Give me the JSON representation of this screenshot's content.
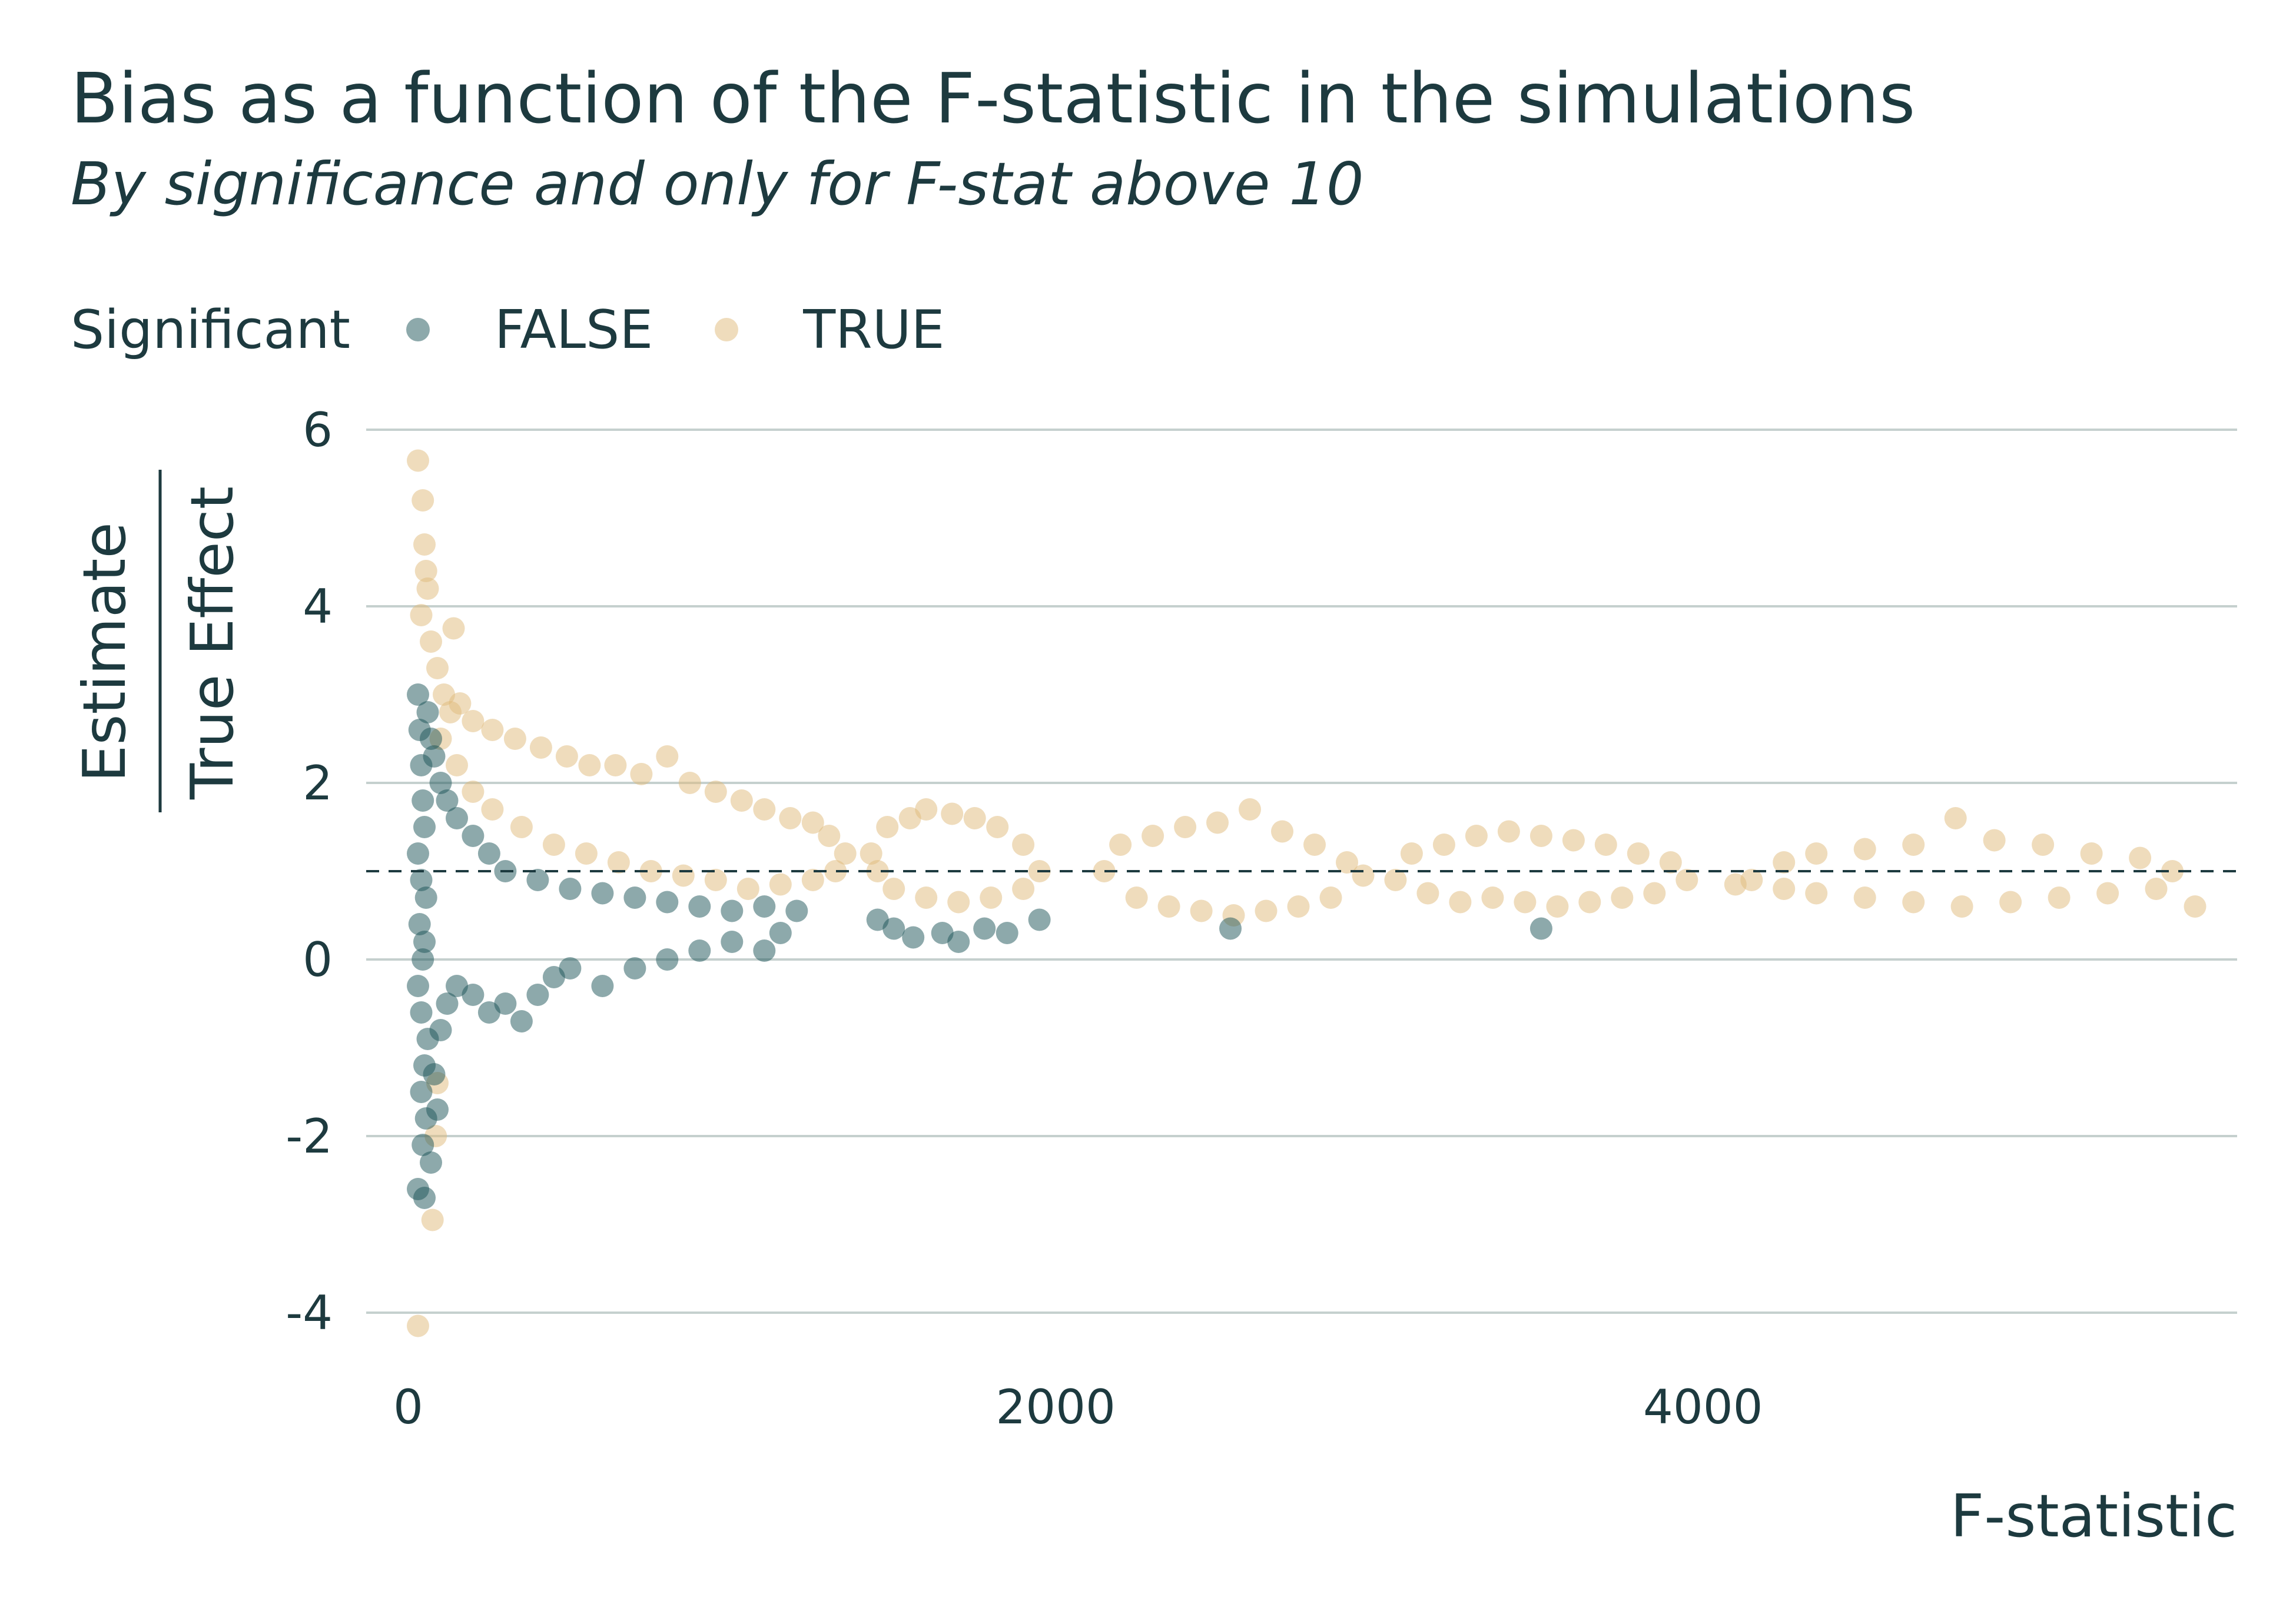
{
  "title": "Bias as a function of the F-statistic in the simulations",
  "subtitle": "By significance and only for F-stat above 10",
  "legend": {
    "title": "Significant",
    "items": [
      {
        "label": "FALSE",
        "color": "#1b5457"
      },
      {
        "label": "TRUE",
        "color": "#dfb97a"
      }
    ]
  },
  "axes": {
    "x_title": "F-statistic",
    "y_title_numerator": "Estimate",
    "y_title_denominator": "True Effect"
  },
  "chart_data": {
    "type": "scatter",
    "title": "Bias as a function of the F-statistic in the simulations",
    "subtitle": "By significance and only for F-stat above 10",
    "xlabel": "F-statistic",
    "ylabel": "Estimate / True Effect",
    "xlim": [
      -130,
      5650
    ],
    "ylim": [
      -4.7,
      6.3
    ],
    "x_ticks": [
      0,
      2000,
      4000
    ],
    "y_ticks": [
      -4,
      -2,
      0,
      2,
      4,
      6
    ],
    "x_tick_labels": [
      "0",
      "2000",
      "4000"
    ],
    "y_tick_labels": [
      "-4",
      "-2",
      "0",
      "2",
      "4",
      "6"
    ],
    "reference_line": {
      "y": 1,
      "style": "dashed"
    },
    "grid": "horizontal major only",
    "legend_position": "top-left",
    "series": [
      {
        "name": "FALSE",
        "color": "#1b5457",
        "description": "Non-significant estimates; dense funnel near F close to 0 spanning roughly -2.7 to 3, narrowing with larger F; a few points up to F about 1950",
        "points": [
          [
            30,
            3.0
          ],
          [
            35,
            2.6
          ],
          [
            40,
            2.2
          ],
          [
            45,
            1.8
          ],
          [
            50,
            1.5
          ],
          [
            30,
            1.2
          ],
          [
            40,
            0.9
          ],
          [
            55,
            0.7
          ],
          [
            35,
            0.4
          ],
          [
            50,
            0.2
          ],
          [
            45,
            0.0
          ],
          [
            30,
            -0.3
          ],
          [
            40,
            -0.6
          ],
          [
            60,
            -0.9
          ],
          [
            50,
            -1.2
          ],
          [
            40,
            -1.5
          ],
          [
            55,
            -1.8
          ],
          [
            45,
            -2.1
          ],
          [
            30,
            -2.6
          ],
          [
            50,
            -2.7
          ],
          [
            70,
            -2.3
          ],
          [
            90,
            -1.7
          ],
          [
            80,
            -1.3
          ],
          [
            100,
            -0.8
          ],
          [
            120,
            -0.5
          ],
          [
            150,
            -0.3
          ],
          [
            200,
            -0.4
          ],
          [
            250,
            -0.6
          ],
          [
            300,
            -0.5
          ],
          [
            350,
            -0.7
          ],
          [
            400,
            -0.4
          ],
          [
            450,
            -0.2
          ],
          [
            500,
            -0.1
          ],
          [
            600,
            -0.3
          ],
          [
            700,
            -0.1
          ],
          [
            800,
            0.0
          ],
          [
            900,
            0.1
          ],
          [
            1000,
            0.2
          ],
          [
            1100,
            0.1
          ],
          [
            1150,
            0.3
          ],
          [
            1200,
            0.55
          ],
          [
            1100,
            0.6
          ],
          [
            1000,
            0.55
          ],
          [
            900,
            0.6
          ],
          [
            800,
            0.65
          ],
          [
            700,
            0.7
          ],
          [
            600,
            0.75
          ],
          [
            500,
            0.8
          ],
          [
            400,
            0.9
          ],
          [
            300,
            1.0
          ],
          [
            250,
            1.2
          ],
          [
            200,
            1.4
          ],
          [
            150,
            1.6
          ],
          [
            120,
            1.8
          ],
          [
            100,
            2.0
          ],
          [
            80,
            2.3
          ],
          [
            70,
            2.5
          ],
          [
            60,
            2.8
          ],
          [
            1450,
            0.45
          ],
          [
            1500,
            0.35
          ],
          [
            1560,
            0.25
          ],
          [
            1650,
            0.3
          ],
          [
            1700,
            0.2
          ],
          [
            1780,
            0.35
          ],
          [
            1850,
            0.3
          ],
          [
            1950,
            0.45
          ],
          [
            2540,
            0.35
          ],
          [
            3500,
            0.35
          ]
        ]
      },
      {
        "name": "TRUE",
        "color": "#dfb97a",
        "description": "Significant estimates; above the FALSE funnel for small F (up to about 5.6 at F near 30), converging toward 1 as F grows, in clusters around F 1400-1950, 2150-2950, 3050-3950, 4150-5500",
        "points": [
          [
            30,
            5.65
          ],
          [
            45,
            5.2
          ],
          [
            50,
            4.7
          ],
          [
            55,
            4.4
          ],
          [
            60,
            4.2
          ],
          [
            40,
            3.9
          ],
          [
            70,
            3.6
          ],
          [
            140,
            3.75
          ],
          [
            90,
            3.3
          ],
          [
            110,
            3.0
          ],
          [
            130,
            2.8
          ],
          [
            160,
            2.9
          ],
          [
            200,
            2.7
          ],
          [
            260,
            2.6
          ],
          [
            330,
            2.5
          ],
          [
            410,
            2.4
          ],
          [
            490,
            2.3
          ],
          [
            560,
            2.2
          ],
          [
            640,
            2.2
          ],
          [
            720,
            2.1
          ],
          [
            800,
            2.3
          ],
          [
            870,
            2.0
          ],
          [
            950,
            1.9
          ],
          [
            1030,
            1.8
          ],
          [
            1100,
            1.7
          ],
          [
            1180,
            1.6
          ],
          [
            1250,
            1.55
          ],
          [
            1300,
            1.4
          ],
          [
            1350,
            1.2
          ],
          [
            1320,
            1.0
          ],
          [
            1250,
            0.9
          ],
          [
            1150,
            0.85
          ],
          [
            1050,
            0.8
          ],
          [
            950,
            0.9
          ],
          [
            850,
            0.95
          ],
          [
            750,
            1.0
          ],
          [
            650,
            1.1
          ],
          [
            550,
            1.2
          ],
          [
            450,
            1.3
          ],
          [
            350,
            1.5
          ],
          [
            260,
            1.7
          ],
          [
            200,
            1.9
          ],
          [
            150,
            2.2
          ],
          [
            100,
            2.5
          ],
          [
            90,
            -1.4
          ],
          [
            85,
            -2.0
          ],
          [
            75,
            -2.95
          ],
          [
            30,
            -4.15
          ],
          [
            1430,
            1.2
          ],
          [
            1480,
            1.5
          ],
          [
            1550,
            1.6
          ],
          [
            1600,
            1.7
          ],
          [
            1680,
            1.65
          ],
          [
            1750,
            1.6
          ],
          [
            1820,
            1.5
          ],
          [
            1900,
            1.3
          ],
          [
            1950,
            1.0
          ],
          [
            1900,
            0.8
          ],
          [
            1800,
            0.7
          ],
          [
            1700,
            0.65
          ],
          [
            1600,
            0.7
          ],
          [
            1500,
            0.8
          ],
          [
            1450,
            1.0
          ],
          [
            2150,
            1.0
          ],
          [
            2200,
            1.3
          ],
          [
            2300,
            1.4
          ],
          [
            2400,
            1.5
          ],
          [
            2500,
            1.55
          ],
          [
            2600,
            1.7
          ],
          [
            2700,
            1.45
          ],
          [
            2800,
            1.3
          ],
          [
            2900,
            1.1
          ],
          [
            2950,
            0.95
          ],
          [
            2850,
            0.7
          ],
          [
            2750,
            0.6
          ],
          [
            2650,
            0.55
          ],
          [
            2550,
            0.5
          ],
          [
            2450,
            0.55
          ],
          [
            2350,
            0.6
          ],
          [
            2250,
            0.7
          ],
          [
            3050,
            0.9
          ],
          [
            3100,
            1.2
          ],
          [
            3200,
            1.3
          ],
          [
            3300,
            1.4
          ],
          [
            3400,
            1.45
          ],
          [
            3500,
            1.4
          ],
          [
            3600,
            1.35
          ],
          [
            3700,
            1.3
          ],
          [
            3800,
            1.2
          ],
          [
            3900,
            1.1
          ],
          [
            3950,
            0.9
          ],
          [
            3850,
            0.75
          ],
          [
            3750,
            0.7
          ],
          [
            3650,
            0.65
          ],
          [
            3550,
            0.6
          ],
          [
            3450,
            0.65
          ],
          [
            3350,
            0.7
          ],
          [
            3250,
            0.65
          ],
          [
            3150,
            0.75
          ],
          [
            4100,
            0.85
          ],
          [
            4150,
            0.9
          ],
          [
            4250,
            1.1
          ],
          [
            4350,
            1.2
          ],
          [
            4500,
            1.25
          ],
          [
            4650,
            1.3
          ],
          [
            4780,
            1.6
          ],
          [
            4900,
            1.35
          ],
          [
            5050,
            1.3
          ],
          [
            5200,
            1.2
          ],
          [
            5350,
            1.15
          ],
          [
            5450,
            1.0
          ],
          [
            5520,
            0.6
          ],
          [
            5400,
            0.8
          ],
          [
            5250,
            0.75
          ],
          [
            5100,
            0.7
          ],
          [
            4950,
            0.65
          ],
          [
            4800,
            0.6
          ],
          [
            4650,
            0.65
          ],
          [
            4500,
            0.7
          ],
          [
            4350,
            0.75
          ],
          [
            4250,
            0.8
          ]
        ]
      }
    ]
  }
}
